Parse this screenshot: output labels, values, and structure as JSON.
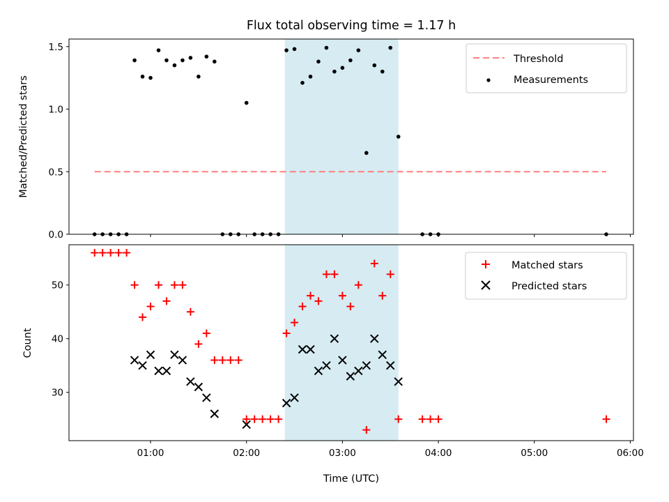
{
  "chart_data": {
    "title": "Flux total observing time = 1.17 h",
    "xlabel": "Time (UTC)",
    "x_ticks": [
      "01:00",
      "02:00",
      "03:00",
      "04:00",
      "05:00",
      "06:00"
    ],
    "shaded_interval": {
      "start": "02:24",
      "end": "03:35",
      "color": "#add8e6"
    },
    "top": {
      "type": "scatter",
      "ylabel": "Matched/Predicted stars",
      "ylim": [
        0,
        1.56
      ],
      "y_ticks": [
        "0.0",
        "0.5",
        "1.0",
        "1.5"
      ],
      "legend_position": "top-right",
      "threshold": {
        "name": "Threshold",
        "value": 0.5,
        "x_start": "00:25",
        "x_end": "05:45",
        "color": "#ff7f7f",
        "style": "dashed"
      },
      "series": [
        {
          "name": "Measurements",
          "color": "#000000",
          "points": [
            [
              "00:25",
              0
            ],
            [
              "00:30",
              0
            ],
            [
              "00:35",
              0
            ],
            [
              "00:40",
              0
            ],
            [
              "00:45",
              0
            ],
            [
              "00:50",
              1.39
            ],
            [
              "00:55",
              1.26
            ],
            [
              "01:00",
              1.25
            ],
            [
              "01:05",
              1.47
            ],
            [
              "01:10",
              1.39
            ],
            [
              "01:15",
              1.35
            ],
            [
              "01:20",
              1.39
            ],
            [
              "01:25",
              1.41
            ],
            [
              "01:30",
              1.26
            ],
            [
              "01:35",
              1.42
            ],
            [
              "01:40",
              1.38
            ],
            [
              "01:45",
              0
            ],
            [
              "01:50",
              0
            ],
            [
              "01:55",
              0
            ],
            [
              "02:00",
              1.05
            ],
            [
              "02:05",
              0
            ],
            [
              "02:10",
              0
            ],
            [
              "02:15",
              0
            ],
            [
              "02:20",
              0
            ],
            [
              "02:25",
              1.47
            ],
            [
              "02:30",
              1.48
            ],
            [
              "02:35",
              1.21
            ],
            [
              "02:40",
              1.26
            ],
            [
              "02:45",
              1.38
            ],
            [
              "02:50",
              1.49
            ],
            [
              "02:55",
              1.3
            ],
            [
              "03:00",
              1.33
            ],
            [
              "03:05",
              1.39
            ],
            [
              "03:10",
              1.47
            ],
            [
              "03:15",
              0.65
            ],
            [
              "03:20",
              1.35
            ],
            [
              "03:25",
              1.3
            ],
            [
              "03:30",
              1.49
            ],
            [
              "03:35",
              0.78
            ],
            [
              "03:50",
              0
            ],
            [
              "03:55",
              0
            ],
            [
              "04:00",
              0
            ],
            [
              "05:45",
              0
            ]
          ]
        }
      ]
    },
    "bottom": {
      "type": "scatter",
      "ylabel": "Count",
      "ylim": [
        21,
        57.5
      ],
      "y_ticks": [
        "30",
        "40",
        "50"
      ],
      "legend_position": "top-right",
      "series": [
        {
          "name": "Matched stars",
          "marker": "plus",
          "color": "#ff0000",
          "points": [
            [
              "00:25",
              56
            ],
            [
              "00:30",
              56
            ],
            [
              "00:35",
              56
            ],
            [
              "00:40",
              56
            ],
            [
              "00:45",
              56
            ],
            [
              "00:50",
              50
            ],
            [
              "00:55",
              44
            ],
            [
              "01:00",
              46
            ],
            [
              "01:05",
              50
            ],
            [
              "01:10",
              47
            ],
            [
              "01:15",
              50
            ],
            [
              "01:20",
              50
            ],
            [
              "01:25",
              45
            ],
            [
              "01:30",
              39
            ],
            [
              "01:35",
              41
            ],
            [
              "01:40",
              36
            ],
            [
              "01:45",
              36
            ],
            [
              "01:50",
              36
            ],
            [
              "01:55",
              36
            ],
            [
              "02:00",
              25
            ],
            [
              "02:05",
              25
            ],
            [
              "02:10",
              25
            ],
            [
              "02:15",
              25
            ],
            [
              "02:20",
              25
            ],
            [
              "02:25",
              41
            ],
            [
              "02:30",
              43
            ],
            [
              "02:35",
              46
            ],
            [
              "02:40",
              48
            ],
            [
              "02:45",
              47
            ],
            [
              "02:50",
              52
            ],
            [
              "02:55",
              52
            ],
            [
              "03:00",
              48
            ],
            [
              "03:05",
              46
            ],
            [
              "03:10",
              50
            ],
            [
              "03:15",
              23
            ],
            [
              "03:20",
              54
            ],
            [
              "03:25",
              48
            ],
            [
              "03:30",
              52
            ],
            [
              "03:35",
              25
            ],
            [
              "03:50",
              25
            ],
            [
              "03:55",
              25
            ],
            [
              "04:00",
              25
            ],
            [
              "05:45",
              25
            ]
          ]
        },
        {
          "name": "Predicted stars",
          "marker": "x",
          "color": "#000000",
          "points": [
            [
              "00:50",
              36
            ],
            [
              "00:55",
              35
            ],
            [
              "01:00",
              37
            ],
            [
              "01:05",
              34
            ],
            [
              "01:10",
              34
            ],
            [
              "01:15",
              37
            ],
            [
              "01:20",
              36
            ],
            [
              "01:25",
              32
            ],
            [
              "01:30",
              31
            ],
            [
              "01:35",
              29
            ],
            [
              "01:40",
              26
            ],
            [
              "02:00",
              24
            ],
            [
              "02:25",
              28
            ],
            [
              "02:30",
              29
            ],
            [
              "02:35",
              38
            ],
            [
              "02:40",
              38
            ],
            [
              "02:45",
              34
            ],
            [
              "02:50",
              35
            ],
            [
              "02:55",
              40
            ],
            [
              "03:00",
              36
            ],
            [
              "03:05",
              33
            ],
            [
              "03:10",
              34
            ],
            [
              "03:15",
              35
            ],
            [
              "03:20",
              40
            ],
            [
              "03:25",
              37
            ],
            [
              "03:30",
              35
            ],
            [
              "03:35",
              32
            ]
          ]
        }
      ]
    }
  }
}
